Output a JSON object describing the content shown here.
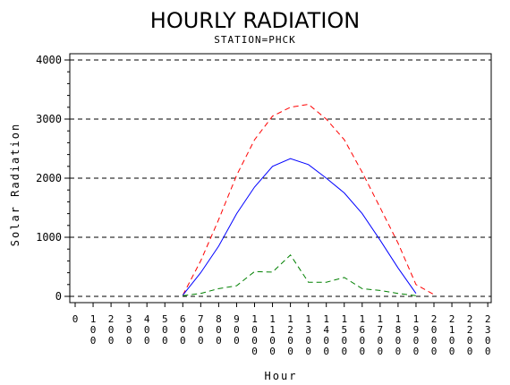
{
  "chart_data": {
    "type": "line",
    "title": "HOURLY RADIATION",
    "subtitle": "STATION=PHCK",
    "xlabel": "Hour",
    "ylabel": "Solar Radiation",
    "ylim": [
      0,
      4000
    ],
    "yticks": [
      "0",
      "1000",
      "2000",
      "3000",
      "4000"
    ],
    "ytick_values": [
      0,
      1000,
      2000,
      3000,
      4000
    ],
    "grid": true,
    "categories": [
      "0",
      "100",
      "200",
      "300",
      "400",
      "500",
      "600",
      "700",
      "800",
      "900",
      "1000",
      "1100",
      "1200",
      "1300",
      "1400",
      "1500",
      "1600",
      "1700",
      "1800",
      "1900",
      "2000",
      "2100",
      "2200",
      "2300"
    ],
    "series": [
      {
        "color": "#ff0000",
        "style": "dashed",
        "values": [
          null,
          null,
          null,
          null,
          null,
          null,
          20,
          600,
          1300,
          2050,
          2650,
          3050,
          3200,
          3250,
          3000,
          2650,
          2100,
          1500,
          900,
          200,
          30,
          null,
          null,
          null
        ]
      },
      {
        "color": "#0000ff",
        "style": "solid",
        "values": [
          null,
          null,
          null,
          null,
          null,
          null,
          20,
          400,
          850,
          1400,
          1850,
          2200,
          2330,
          2230,
          2000,
          1750,
          1400,
          950,
          480,
          50,
          null,
          null,
          null,
          null
        ]
      },
      {
        "color": "#008000",
        "style": "dashed",
        "values": [
          null,
          null,
          null,
          null,
          null,
          null,
          10,
          50,
          130,
          180,
          420,
          410,
          700,
          240,
          240,
          320,
          130,
          100,
          50,
          10,
          null,
          null,
          null,
          null
        ]
      }
    ]
  }
}
